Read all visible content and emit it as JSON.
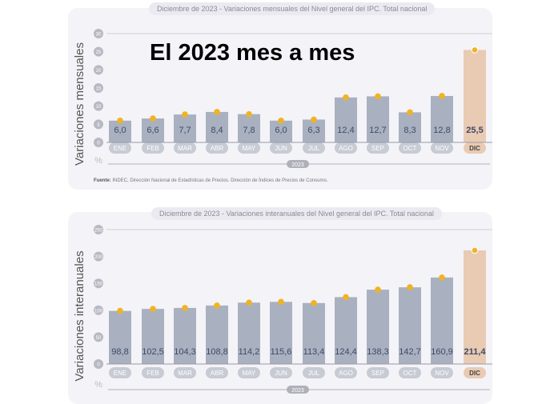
{
  "overlay_title": "El 2023 mes a mes",
  "source_label": "Fuente:",
  "source_text": "INDEC, Dirección Nacional de Estadísticas de Precios. Dirección de Índices de Precios de Consumo.",
  "colors": {
    "bar": "#a9b1c0",
    "highlight": "#e9cab3",
    "dot": "#f0b323",
    "label": "#3e4a66",
    "axis": "#9a9aa5"
  },
  "chart_data": [
    {
      "type": "bar",
      "title": "Diciembre de 2023 - Variaciones mensuales del Nivel general del IPC. Total nacional",
      "ylabel": "Variaciones mensuales",
      "unit": "%",
      "xgroup": "2023",
      "ylim": [
        0,
        30
      ],
      "yticks": [
        0,
        5,
        10,
        15,
        20,
        25,
        30
      ],
      "categories": [
        "ENE",
        "FEB",
        "MAR",
        "ABR",
        "MAY",
        "JUN",
        "JUL",
        "AGO",
        "SEP",
        "OCT",
        "NOV",
        "DIC"
      ],
      "values": [
        6.0,
        6.6,
        7.7,
        8.4,
        7.8,
        6.0,
        6.3,
        12.4,
        12.7,
        8.3,
        12.8,
        25.5
      ],
      "labels": [
        "6,0",
        "6,6",
        "7,7",
        "8,4",
        "7,8",
        "6,0",
        "6,3",
        "12,4",
        "12,7",
        "8,3",
        "12,8",
        "25,5"
      ]
    },
    {
      "type": "bar",
      "title": "Diciembre de 2023 - Variaciones interanuales del Nivel general del IPC. Total nacional",
      "ylabel": "Variaciones interanuales",
      "unit": "%",
      "xgroup": "2023",
      "ylim": [
        0,
        250
      ],
      "yticks": [
        0,
        50,
        100,
        150,
        200,
        250
      ],
      "categories": [
        "ENE",
        "FEB",
        "MAR",
        "ABR",
        "MAY",
        "JUN",
        "JUL",
        "AGO",
        "SEP",
        "OCT",
        "NOV",
        "DIC"
      ],
      "values": [
        98.8,
        102.5,
        104.3,
        108.8,
        114.2,
        115.6,
        113.4,
        124.4,
        138.3,
        142.7,
        160.9,
        211.4
      ],
      "labels": [
        "98,8",
        "102,5",
        "104,3",
        "108,8",
        "114,2",
        "115,6",
        "113,4",
        "124,4",
        "138,3",
        "142,7",
        "160,9",
        "211,4"
      ]
    }
  ]
}
